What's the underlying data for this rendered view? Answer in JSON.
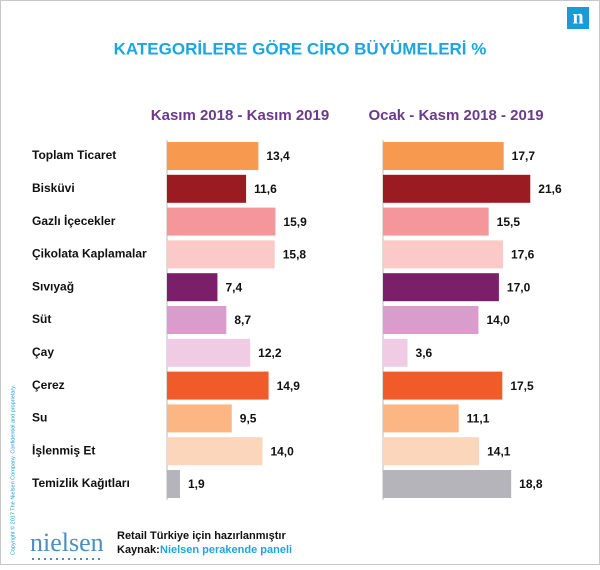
{
  "title": "KATEGORİLERE GÖRE CİRO BÜYÜMELERİ %",
  "logo": "n",
  "copyright": "Copyright © 2017 The Nielsen Company. Confidential and proprietary.",
  "footer": {
    "brand": "nielsen",
    "note": "Retail Türkiye için hazırlanmıştır",
    "source_label": "Kaynak:",
    "source": "Nielsen perakende paneli"
  },
  "chart_data": [
    {
      "type": "bar",
      "orientation": "horizontal",
      "title": "Kasım 2018 - Kasım 2019",
      "categories": [
        "Toplam Ticaret",
        "Bisküvi",
        "Gazlı İçecekler",
        "Çikolata Kaplamalar",
        "Sıvıyağ",
        "Süt",
        "Çay",
        "Çerez",
        "Su",
        "İşlenmiş Et",
        "Temizlik Kağıtları"
      ],
      "values": [
        13.4,
        11.6,
        15.9,
        15.8,
        7.4,
        8.7,
        12.2,
        14.9,
        9.5,
        14.0,
        1.9
      ],
      "value_labels": [
        "13,4",
        "11,6",
        "15,9",
        "15,8",
        "7,4",
        "8,7",
        "12,2",
        "14,9",
        "9,5",
        "14,0",
        "1,9"
      ],
      "colors": [
        "#f7994f",
        "#9b1b22",
        "#f5979a",
        "#fbcac8",
        "#7c1f6b",
        "#d99ccb",
        "#efcce4",
        "#f15a29",
        "#fbb684",
        "#fcd6bb",
        "#b4b4ba"
      ],
      "xlim": [
        0,
        22
      ]
    },
    {
      "type": "bar",
      "orientation": "horizontal",
      "title": "Ocak - Kasm 2018 - 2019",
      "values": [
        17.7,
        21.6,
        15.5,
        17.6,
        17.0,
        14.0,
        3.6,
        17.5,
        11.1,
        14.1,
        18.8
      ],
      "value_labels": [
        "17,7",
        "21,6",
        "15,5",
        "17,6",
        "17,0",
        "14,0",
        "3,6",
        "17,5",
        "11,1",
        "14,1",
        "18,8"
      ],
      "colors": [
        "#f7994f",
        "#9b1b22",
        "#f5979a",
        "#fbcac8",
        "#7c1f6b",
        "#d99ccb",
        "#efcce4",
        "#f15a29",
        "#fbb684",
        "#fcd6bb",
        "#b4b4ba"
      ],
      "xlim": [
        0,
        22
      ]
    }
  ]
}
